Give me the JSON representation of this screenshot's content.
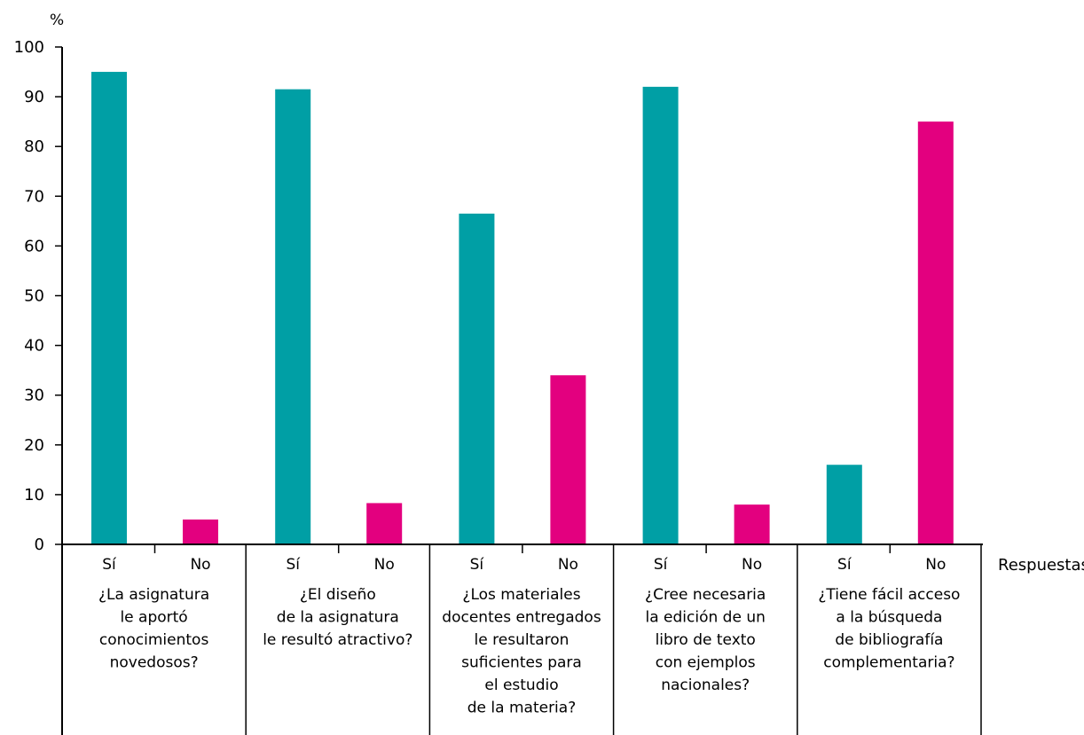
{
  "chart_data": {
    "type": "bar",
    "ylabel": "%",
    "xlabel": "Respuestas",
    "ylim": [
      0,
      100
    ],
    "yticks": [
      0,
      10,
      20,
      30,
      40,
      50,
      60,
      70,
      80,
      90,
      100
    ],
    "grid": false,
    "colors": {
      "Sí": "#009fa5",
      "No": "#e3007f"
    },
    "groups": [
      {
        "question": [
          "¿La asignatura",
          "le aportó",
          "conocimientos",
          "novedosos?"
        ],
        "bars": [
          {
            "label": "Sí",
            "value": 95
          },
          {
            "label": "No",
            "value": 5
          }
        ]
      },
      {
        "question": [
          "¿El diseño",
          "de la asignatura",
          "le resultó atractivo?"
        ],
        "bars": [
          {
            "label": "Sí",
            "value": 91.5
          },
          {
            "label": "No",
            "value": 8.3
          }
        ]
      },
      {
        "question": [
          "¿Los materiales",
          "docentes entregados",
          "le resultaron",
          "suficientes para",
          "el estudio",
          "de la materia?"
        ],
        "bars": [
          {
            "label": "Sí",
            "value": 66.5
          },
          {
            "label": "No",
            "value": 34
          }
        ]
      },
      {
        "question": [
          "¿Cree necesaria",
          "la edición de un",
          "libro de texto",
          "con ejemplos",
          "nacionales?"
        ],
        "bars": [
          {
            "label": "Sí",
            "value": 92
          },
          {
            "label": "No",
            "value": 8
          }
        ]
      },
      {
        "question": [
          "¿Tiene fácil acceso",
          "a la búsqueda",
          "de bibliografía",
          "complementaria?"
        ],
        "bars": [
          {
            "label": "Sí",
            "value": 16
          },
          {
            "label": "No",
            "value": 85
          }
        ]
      }
    ]
  }
}
